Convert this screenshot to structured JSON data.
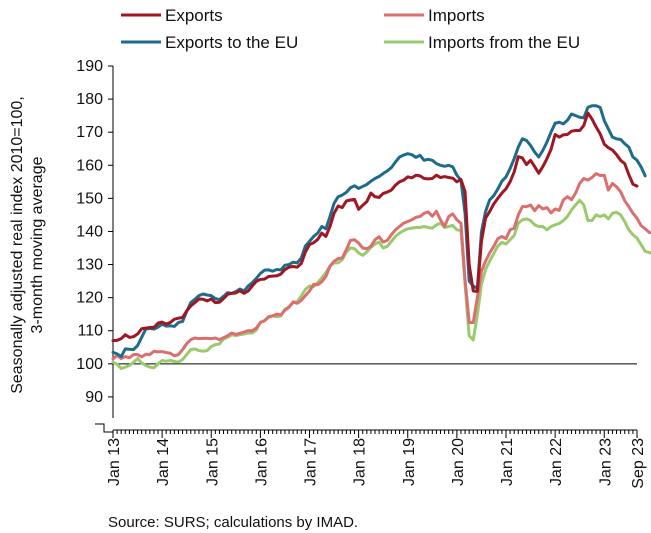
{
  "chart_data": {
    "type": "line",
    "ylabel_lines": [
      "Seasonally adjusted real index 2010=100,",
      "3-month moving average"
    ],
    "ylim": [
      80,
      190
    ],
    "yticks": [
      90,
      100,
      110,
      120,
      130,
      140,
      150,
      160,
      170,
      180,
      190
    ],
    "xticks": [
      "Jan 13",
      "Jan 14",
      "Jan 15",
      "Jan 16",
      "Jan 17",
      "Jan 18",
      "Jan 19",
      "Jan 20",
      "Jan 21",
      "Jan 22",
      "Jan 23",
      "Sep 23"
    ],
    "xtick_index": [
      0,
      12,
      24,
      36,
      48,
      60,
      72,
      84,
      96,
      108,
      120,
      128
    ],
    "reference_line": 100,
    "source": "Source: SURS; calculations by IMAD.",
    "legend_position": "top",
    "series": [
      {
        "name": "Exports",
        "color": "#a01622",
        "values": [
          107,
          107.1,
          107.6,
          108.8,
          108,
          108.2,
          109,
          110.6,
          110.8,
          111,
          111,
          112.3,
          112.6,
          112,
          112.5,
          113.5,
          113.8,
          114,
          116,
          117.5,
          118.5,
          119.6,
          119.5,
          119,
          119.6,
          118.5,
          118.6,
          119.7,
          121,
          121.3,
          121.4,
          122.1,
          121.3,
          122,
          123.5,
          124.9,
          125.5,
          125.6,
          126.4,
          126.5,
          126.6,
          127.1,
          128.5,
          129.2,
          129.4,
          129.2,
          130.3,
          133.8,
          136,
          136.6,
          137.6,
          139.5,
          138.5,
          141.5,
          145.5,
          147.7,
          147.2,
          149.2,
          149.5,
          149.7,
          146.7,
          147.9,
          149,
          151.6,
          150.5,
          150.3,
          151.5,
          151.9,
          152.5,
          154,
          155,
          155.5,
          156.5,
          156.2,
          157,
          156.8,
          156,
          155.9,
          156,
          157,
          156.3,
          156.6,
          156.3,
          156.1,
          155,
          155.7,
          152,
          130,
          122,
          121.9,
          137,
          144,
          146,
          148.3,
          150,
          151.6,
          152.9,
          155,
          158,
          162.6,
          162.2,
          160.2,
          161.5,
          159.6,
          157.6,
          159.6,
          162,
          164.8,
          169.3,
          168.5,
          169.2,
          169.3,
          170.3,
          170.5,
          170.5,
          172,
          175.8,
          174,
          171.6,
          169.5,
          166.4,
          165.3,
          164.6,
          163.2,
          161.5,
          160.5,
          157.2,
          154.3,
          153.7
        ]
      },
      {
        "name": "Imports",
        "color": "#db6e6f",
        "values": [
          101.5,
          102.5,
          101.6,
          102.2,
          101.8,
          102.8,
          102.8,
          102.1,
          102.9,
          102.8,
          103.8,
          103.6,
          103.7,
          103.4,
          103.2,
          102.4,
          102.8,
          104.3,
          106.1,
          107.3,
          107.8,
          107.6,
          107.7,
          107.7,
          107.6,
          107.8,
          107.3,
          107.9,
          108.5,
          109.3,
          108.9,
          109.2,
          109.6,
          110,
          110,
          110.8,
          112.5,
          113,
          114.1,
          114.5,
          115,
          114.8,
          116.2,
          117.1,
          118.7,
          118.3,
          119.2,
          120.6,
          122,
          124,
          123.9,
          124.8,
          126.4,
          129.5,
          131,
          131.8,
          132,
          134.5,
          137.3,
          137.5,
          136.5,
          135,
          134.8,
          135.5,
          137.5,
          138.4,
          136.8,
          137.3,
          139,
          140.5,
          141.5,
          142.5,
          143,
          143.5,
          144.3,
          144.5,
          145.5,
          145.9,
          144.6,
          146.1,
          143.5,
          141.5,
          144.5,
          145.3,
          143.5,
          142.5,
          125.5,
          112.5,
          112.5,
          120,
          128,
          131,
          133.5,
          135.5,
          137.8,
          138.5,
          137.8,
          140.5,
          141,
          145,
          147.5,
          147.5,
          148,
          146.3,
          147.8,
          146.8,
          147.2,
          145.6,
          146.8,
          146.4,
          149.5,
          150.5,
          149.6,
          151.6,
          154.5,
          156,
          155.5,
          156.3,
          157.5,
          156.9,
          157,
          152.5,
          154.5,
          153.5,
          152,
          149.3,
          147.5,
          145.5,
          144,
          141.8,
          140.8,
          139.7,
          139.5,
          138
        ]
      },
      {
        "name": "Exports to the EU",
        "color": "#1e6b8a",
        "values": [
          103.5,
          103,
          102.2,
          104.5,
          104.4,
          104.3,
          105.5,
          108,
          110.5,
          110.7,
          110.5,
          111.1,
          112,
          111.4,
          111.5,
          111.3,
          112.5,
          112.8,
          115.8,
          118.5,
          119.5,
          120.6,
          121.1,
          120.8,
          120.6,
          119.7,
          119.4,
          120.4,
          121.5,
          121.3,
          121.8,
          122.6,
          122,
          123.5,
          124.5,
          125.8,
          127.3,
          128.3,
          128.4,
          128,
          128.5,
          128.4,
          129.8,
          130,
          130.7,
          130.5,
          132,
          135.6,
          137,
          138.5,
          139.5,
          141.5,
          140.8,
          144.5,
          148.5,
          150.5,
          151,
          151.8,
          153.2,
          153.8,
          153,
          153.6,
          154.2,
          155.2,
          156,
          156.6,
          157.5,
          158.3,
          159.3,
          161,
          162.5,
          163.1,
          163.5,
          163.2,
          162.4,
          163,
          161.5,
          161.8,
          161.5,
          160.5,
          160,
          159.7,
          160,
          159.5,
          157,
          155.5,
          145.5,
          125,
          123.5,
          122.8,
          139.8,
          146,
          149.5,
          150.8,
          152.8,
          155.2,
          156.5,
          159,
          162,
          165.5,
          168,
          167.5,
          166,
          164,
          162.5,
          164.5,
          167,
          170,
          172.7,
          173,
          172.5,
          173.6,
          175.5,
          175,
          174.5,
          174.3,
          177.5,
          178,
          178,
          177.5,
          173.5,
          171,
          168.5,
          168,
          167.8,
          166.5,
          165.5,
          162.5,
          161.5,
          159.5,
          156.8
        ]
      },
      {
        "name": "Imports from the EU",
        "color": "#9bc96e",
        "values": [
          100.5,
          99.8,
          98.6,
          99,
          99.5,
          100.4,
          101.6,
          100.3,
          99.5,
          99,
          98.8,
          100,
          101,
          100.8,
          101,
          100.7,
          100.5,
          101.3,
          102.8,
          104.3,
          104.5,
          104,
          103.8,
          104,
          105.2,
          105.8,
          106,
          107.5,
          108,
          108.8,
          108.5,
          108.8,
          109,
          109.3,
          109.3,
          110.2,
          112.5,
          113,
          114.3,
          114.5,
          114.2,
          114.5,
          116.5,
          117.2,
          118.5,
          118.8,
          120.5,
          122.5,
          123.5,
          123.3,
          124.5,
          126,
          127.5,
          129.5,
          130.5,
          130.5,
          131.5,
          133.8,
          135,
          134.8,
          133.5,
          132.8,
          133.8,
          135.2,
          136.2,
          136.8,
          135,
          135.5,
          137,
          138.5,
          139.5,
          140.3,
          140.8,
          141,
          141.2,
          141.2,
          141.5,
          141.2,
          141,
          142,
          142.5,
          141.2,
          141.5,
          141.8,
          140.5,
          140.3,
          124,
          108.5,
          107.2,
          114.8,
          124,
          128.5,
          131,
          133.3,
          135.6,
          136.7,
          136.2,
          137.5,
          138.8,
          142.5,
          143.5,
          143.8,
          143.3,
          142,
          141.5,
          141.5,
          140.5,
          141.5,
          142,
          142.4,
          143.3,
          144.5,
          146.5,
          148,
          149.4,
          148,
          143.3,
          143.3,
          145,
          144.5,
          145,
          143.8,
          145.5,
          145.8,
          145,
          143,
          140.5,
          139,
          138,
          136,
          134,
          133.6,
          133.2
        ]
      }
    ]
  }
}
